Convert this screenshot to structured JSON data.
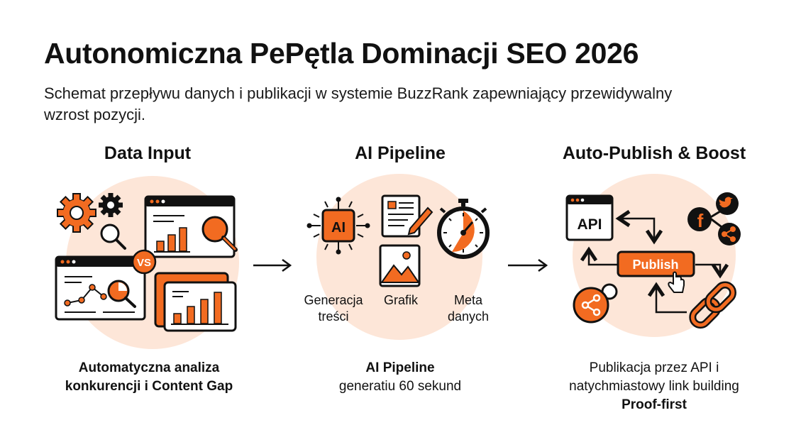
{
  "title": "Autonomiczna PePętla Dominacji SEO 2026",
  "subtitle": "Schemat przepływu danych i publikacji w systemie BuzzRank zapewniający przewidywalny wzrost pozycji.",
  "colors": {
    "accent": "#f26b21",
    "circle": "#fde6d8",
    "ink": "#111111"
  },
  "stages": [
    {
      "heading": "Data Input",
      "caption_line1": "Automatyczna analiza",
      "caption_line2": "konkurencji i Content Gap",
      "badge": "VS",
      "icons": [
        "gear-icon",
        "magnifier-icon",
        "browser-chart-icon",
        "line-chart-icon",
        "bar-chart-icon"
      ]
    },
    {
      "heading": "AI Pipeline",
      "caption_line1": "AI Pipeline",
      "caption_line2": "generatiu 60 sekund",
      "chip": "AI",
      "labels": [
        "Generacja\ntreści",
        "Grafik",
        "Meta\ndanych"
      ],
      "icons": [
        "ai-chip-icon",
        "document-pencil-icon",
        "image-icon",
        "stopwatch-icon"
      ]
    },
    {
      "heading": "Auto-Publish & Boost",
      "caption_line1": "Publikacja przez API i",
      "caption_line2": "natychmiastowy link building",
      "caption_line3": "Proof-first",
      "api": "API",
      "button": "Publish",
      "icons": [
        "api-window-icon",
        "twitter-icon",
        "facebook-icon",
        "share-icon",
        "link-chain-icon",
        "hand-cursor-icon"
      ]
    }
  ]
}
